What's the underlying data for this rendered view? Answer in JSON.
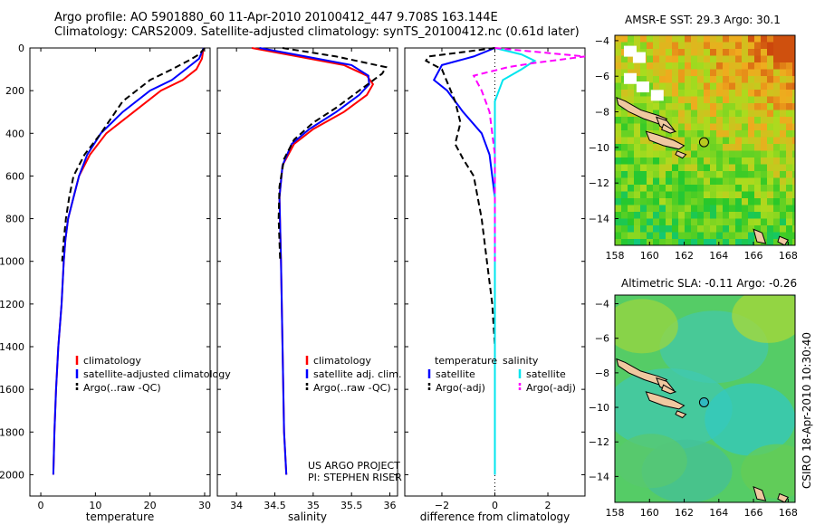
{
  "header": {
    "line1": "Argo profile: AO 5901880_60 11-Apr-2010 20100412_447 9.708S 163.144E",
    "line2": "Climatology: CARS2009. Satellite-adjusted climatology: synTS_20100412.nc (0.61d later)"
  },
  "colors": {
    "climatology": "#ff0000",
    "satellite": "#0000ff",
    "argo": "#000000",
    "sal_satellite": "#00e5ee",
    "sal_argo": "#ff00ff"
  },
  "chart_data": [
    {
      "type": "line",
      "id": "temperature",
      "xlabel": "temperature",
      "ylabel": "",
      "xlim": [
        -2,
        31
      ],
      "ylim": [
        2100,
        0
      ],
      "y_inverted": true,
      "xticks": [
        0,
        10,
        20,
        30
      ],
      "yticks": [
        0,
        200,
        400,
        600,
        800,
        1000,
        1200,
        1400,
        1600,
        1800,
        2000
      ],
      "legend": {
        "placement": "lower-right",
        "entries": [
          "climatology",
          "satellite-adjusted climatology",
          "Argo(..raw -QC)"
        ]
      },
      "series": [
        {
          "name": "climatology",
          "style": "solid",
          "color": "#ff0000",
          "points": [
            [
              29.8,
              0
            ],
            [
              29.5,
              50
            ],
            [
              28.5,
              100
            ],
            [
              26,
              150
            ],
            [
              22,
              200
            ],
            [
              17,
              300
            ],
            [
              12,
              400
            ],
            [
              9,
              500
            ],
            [
              7,
              600
            ],
            [
              6,
              700
            ],
            [
              5,
              800
            ],
            [
              4.5,
              900
            ],
            [
              4.2,
              1000
            ],
            [
              3.8,
              1200
            ],
            [
              3.2,
              1400
            ],
            [
              2.8,
              1600
            ],
            [
              2.5,
              1800
            ],
            [
              2.3,
              2000
            ]
          ]
        },
        {
          "name": "satellite-adjusted climatology",
          "style": "solid",
          "color": "#0000ff",
          "points": [
            [
              29.8,
              0
            ],
            [
              29,
              50
            ],
            [
              26.5,
              100
            ],
            [
              24,
              150
            ],
            [
              20,
              200
            ],
            [
              15,
              300
            ],
            [
              11,
              400
            ],
            [
              8.5,
              500
            ],
            [
              7,
              600
            ],
            [
              6,
              700
            ],
            [
              5,
              800
            ],
            [
              4.5,
              900
            ],
            [
              4.2,
              1000
            ],
            [
              3.8,
              1200
            ],
            [
              3.2,
              1400
            ],
            [
              2.8,
              1600
            ],
            [
              2.5,
              1800
            ],
            [
              2.3,
              2000
            ]
          ]
        },
        {
          "name": "Argo(..raw -QC)",
          "style": "dashed",
          "color": "#000000",
          "points": [
            [
              30,
              0
            ],
            [
              29,
              30
            ],
            [
              27,
              60
            ],
            [
              24,
              100
            ],
            [
              20,
              150
            ],
            [
              15,
              250
            ],
            [
              11,
              400
            ],
            [
              8,
              500
            ],
            [
              6,
              600
            ],
            [
              5.2,
              700
            ],
            [
              4.6,
              800
            ],
            [
              4.2,
              900
            ],
            [
              3.9,
              1000
            ]
          ]
        }
      ]
    },
    {
      "type": "line",
      "id": "salinity",
      "xlabel": "salinity",
      "ylabel": "",
      "xlim": [
        33.75,
        36.1
      ],
      "ylim": [
        2100,
        0
      ],
      "y_inverted": true,
      "xticks": [
        34,
        34.5,
        35,
        35.5,
        36
      ],
      "legend": {
        "placement": "lower-right",
        "entries": [
          "climatology",
          "satellite adj. clim.",
          "Argo(..raw -QC)"
        ]
      },
      "annotation": [
        "US ARGO PROJECT",
        "PI: STEPHEN RISER"
      ],
      "series": [
        {
          "name": "climatology",
          "style": "solid",
          "color": "#ff0000",
          "points": [
            [
              34.2,
              0
            ],
            [
              34.8,
              40
            ],
            [
              35.4,
              80
            ],
            [
              35.7,
              130
            ],
            [
              35.78,
              170
            ],
            [
              35.7,
              220
            ],
            [
              35.4,
              300
            ],
            [
              35.0,
              380
            ],
            [
              34.75,
              450
            ],
            [
              34.6,
              550
            ],
            [
              34.56,
              700
            ],
            [
              34.58,
              1000
            ],
            [
              34.6,
              1400
            ],
            [
              34.62,
              1800
            ],
            [
              34.65,
              2000
            ]
          ]
        },
        {
          "name": "satellite adj. clim.",
          "style": "solid",
          "color": "#0000ff",
          "points": [
            [
              34.3,
              0
            ],
            [
              34.9,
              40
            ],
            [
              35.5,
              80
            ],
            [
              35.72,
              130
            ],
            [
              35.73,
              170
            ],
            [
              35.6,
              220
            ],
            [
              35.3,
              300
            ],
            [
              34.95,
              380
            ],
            [
              34.72,
              450
            ],
            [
              34.6,
              550
            ],
            [
              34.56,
              700
            ],
            [
              34.58,
              1000
            ],
            [
              34.6,
              1400
            ],
            [
              34.62,
              1800
            ],
            [
              34.65,
              2000
            ]
          ]
        },
        {
          "name": "Argo(..raw -QC)",
          "style": "dashed",
          "color": "#000000",
          "points": [
            [
              34.6,
              0
            ],
            [
              35.3,
              40
            ],
            [
              35.95,
              90
            ],
            [
              35.9,
              120
            ],
            [
              35.6,
              200
            ],
            [
              35.3,
              280
            ],
            [
              35.0,
              350
            ],
            [
              34.75,
              430
            ],
            [
              34.62,
              520
            ],
            [
              34.56,
              650
            ],
            [
              34.55,
              800
            ],
            [
              34.57,
              1000
            ]
          ]
        }
      ]
    },
    {
      "type": "line",
      "id": "difference",
      "xlabel": "difference from climatology",
      "ylabel": "",
      "xlim": [
        -3.4,
        3.4
      ],
      "ylim": [
        2100,
        0
      ],
      "y_inverted": true,
      "xticks": [
        -2,
        0,
        2
      ],
      "legend": {
        "placement": "lower-right",
        "temperature_title": "temperature",
        "salinity_title": "salinity",
        "entries": [
          "satellite",
          "Argo(-adj)",
          "satellite",
          "Argo(-adj)"
        ]
      },
      "series": [
        {
          "name": "satellite",
          "group": "temperature",
          "style": "solid",
          "color": "#0000ff",
          "points": [
            [
              0,
              0
            ],
            [
              -0.8,
              40
            ],
            [
              -2.0,
              80
            ],
            [
              -2.3,
              150
            ],
            [
              -1.8,
              200
            ],
            [
              -1.2,
              300
            ],
            [
              -0.5,
              400
            ],
            [
              -0.2,
              500
            ],
            [
              0,
              700
            ],
            [
              0,
              2000
            ]
          ]
        },
        {
          "name": "Argo(-adj)",
          "group": "temperature",
          "style": "dashed",
          "color": "#000000",
          "points": [
            [
              0,
              0
            ],
            [
              -2.5,
              40
            ],
            [
              -2.6,
              60
            ],
            [
              -2.0,
              100
            ],
            [
              -1.5,
              250
            ],
            [
              -1.3,
              350
            ],
            [
              -1.5,
              450
            ],
            [
              -1.2,
              520
            ],
            [
              -0.8,
              600
            ],
            [
              -0.5,
              800
            ],
            [
              -0.3,
              1000
            ],
            [
              -0.1,
              1200
            ],
            [
              0,
              1400
            ]
          ]
        },
        {
          "name": "satellite",
          "group": "salinity",
          "style": "solid",
          "color": "#00e5ee",
          "points": [
            [
              0,
              0
            ],
            [
              1.0,
              30
            ],
            [
              1.5,
              60
            ],
            [
              1.0,
              100
            ],
            [
              0.3,
              150
            ],
            [
              0,
              250
            ],
            [
              0,
              2000
            ]
          ]
        },
        {
          "name": "Argo(-adj)",
          "group": "salinity",
          "style": "dashed",
          "color": "#ff00ff",
          "points": [
            [
              0,
              0
            ],
            [
              3.4,
              40
            ],
            [
              1.5,
              70
            ],
            [
              0.5,
              90
            ],
            [
              -0.8,
              130
            ],
            [
              -0.5,
              200
            ],
            [
              -0.2,
              300
            ],
            [
              0,
              500
            ],
            [
              0,
              1000
            ]
          ]
        }
      ]
    },
    {
      "type": "heatmap",
      "id": "sst_map",
      "title": "AMSR-E SST: 29.3 Argo: 30.1",
      "xlim": [
        158,
        168.4
      ],
      "ylim": [
        -15.5,
        -3.7
      ],
      "xticks": [
        158,
        160,
        162,
        164,
        166,
        168
      ],
      "yticks": [
        -4,
        -6,
        -8,
        -10,
        -12,
        -14
      ],
      "argo_position": [
        163.144,
        -9.708
      ]
    },
    {
      "type": "heatmap",
      "id": "sla_map",
      "title": "Altimetric SLA: -0.11 Argo: -0.26",
      "xlim": [
        158,
        168.4
      ],
      "ylim": [
        -15.5,
        -3.5
      ],
      "xticks": [
        158,
        160,
        162,
        164,
        166,
        168
      ],
      "yticks": [
        -4,
        -6,
        -8,
        -10,
        -12,
        -14
      ],
      "argo_position": [
        163.144,
        -9.708
      ]
    }
  ],
  "credit": {
    "line1": "US ARGO PROJECT",
    "line2": "PI: STEPHEN RISER"
  },
  "stamp": "CSIRO 18-Apr-2010 10:30:40"
}
